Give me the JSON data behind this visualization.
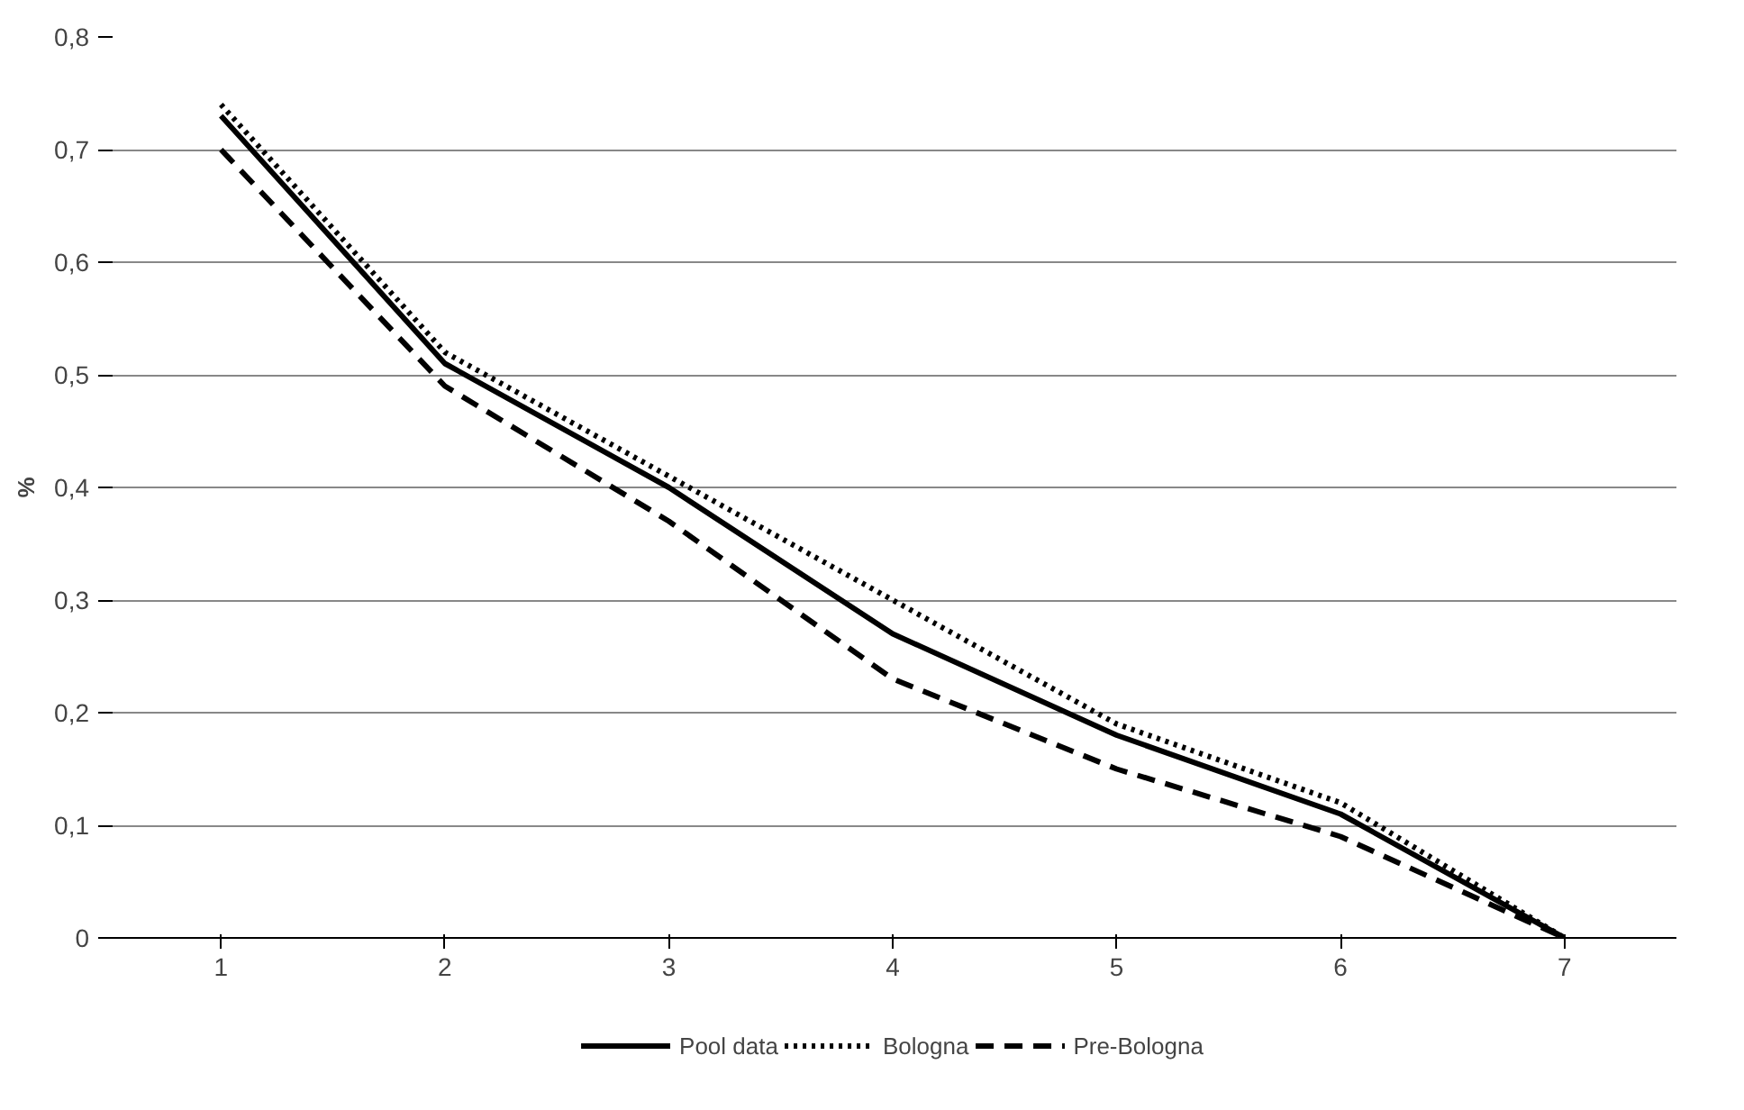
{
  "chart_data": {
    "type": "line",
    "ylabel": "%",
    "categories": [
      "1",
      "2",
      "3",
      "4",
      "5",
      "6",
      "7"
    ],
    "series": [
      {
        "name": "Pool data",
        "color": "#000000",
        "line_style": "solid",
        "values": [
          0.73,
          0.51,
          0.4,
          0.27,
          0.18,
          0.11,
          0
        ]
      },
      {
        "name": "Bologna",
        "color": "#000000",
        "line_style": "dotted",
        "values": [
          0.74,
          0.52,
          0.41,
          0.3,
          0.19,
          0.12,
          0
        ]
      },
      {
        "name": "Pre-Bologna",
        "color": "#000000",
        "line_style": "dashed",
        "values": [
          0.7,
          0.49,
          0.37,
          0.23,
          0.15,
          0.09,
          0
        ]
      }
    ],
    "ylim": [
      0,
      0.8
    ],
    "yticks": [
      0,
      {
        "value": 0.1,
        "label": "0,1"
      },
      {
        "value": 0.2,
        "label": "0,2"
      },
      {
        "value": 0.3,
        "label": "0,3"
      },
      {
        "value": 0.4,
        "label": "0,4"
      },
      {
        "value": 0.5,
        "label": "0,5"
      },
      {
        "value": 0.6,
        "label": "0,6"
      },
      {
        "value": 0.7,
        "label": "0,7"
      },
      {
        "value": 0.8,
        "label": "0,8"
      }
    ],
    "grid": "y",
    "legend": "bottom"
  }
}
